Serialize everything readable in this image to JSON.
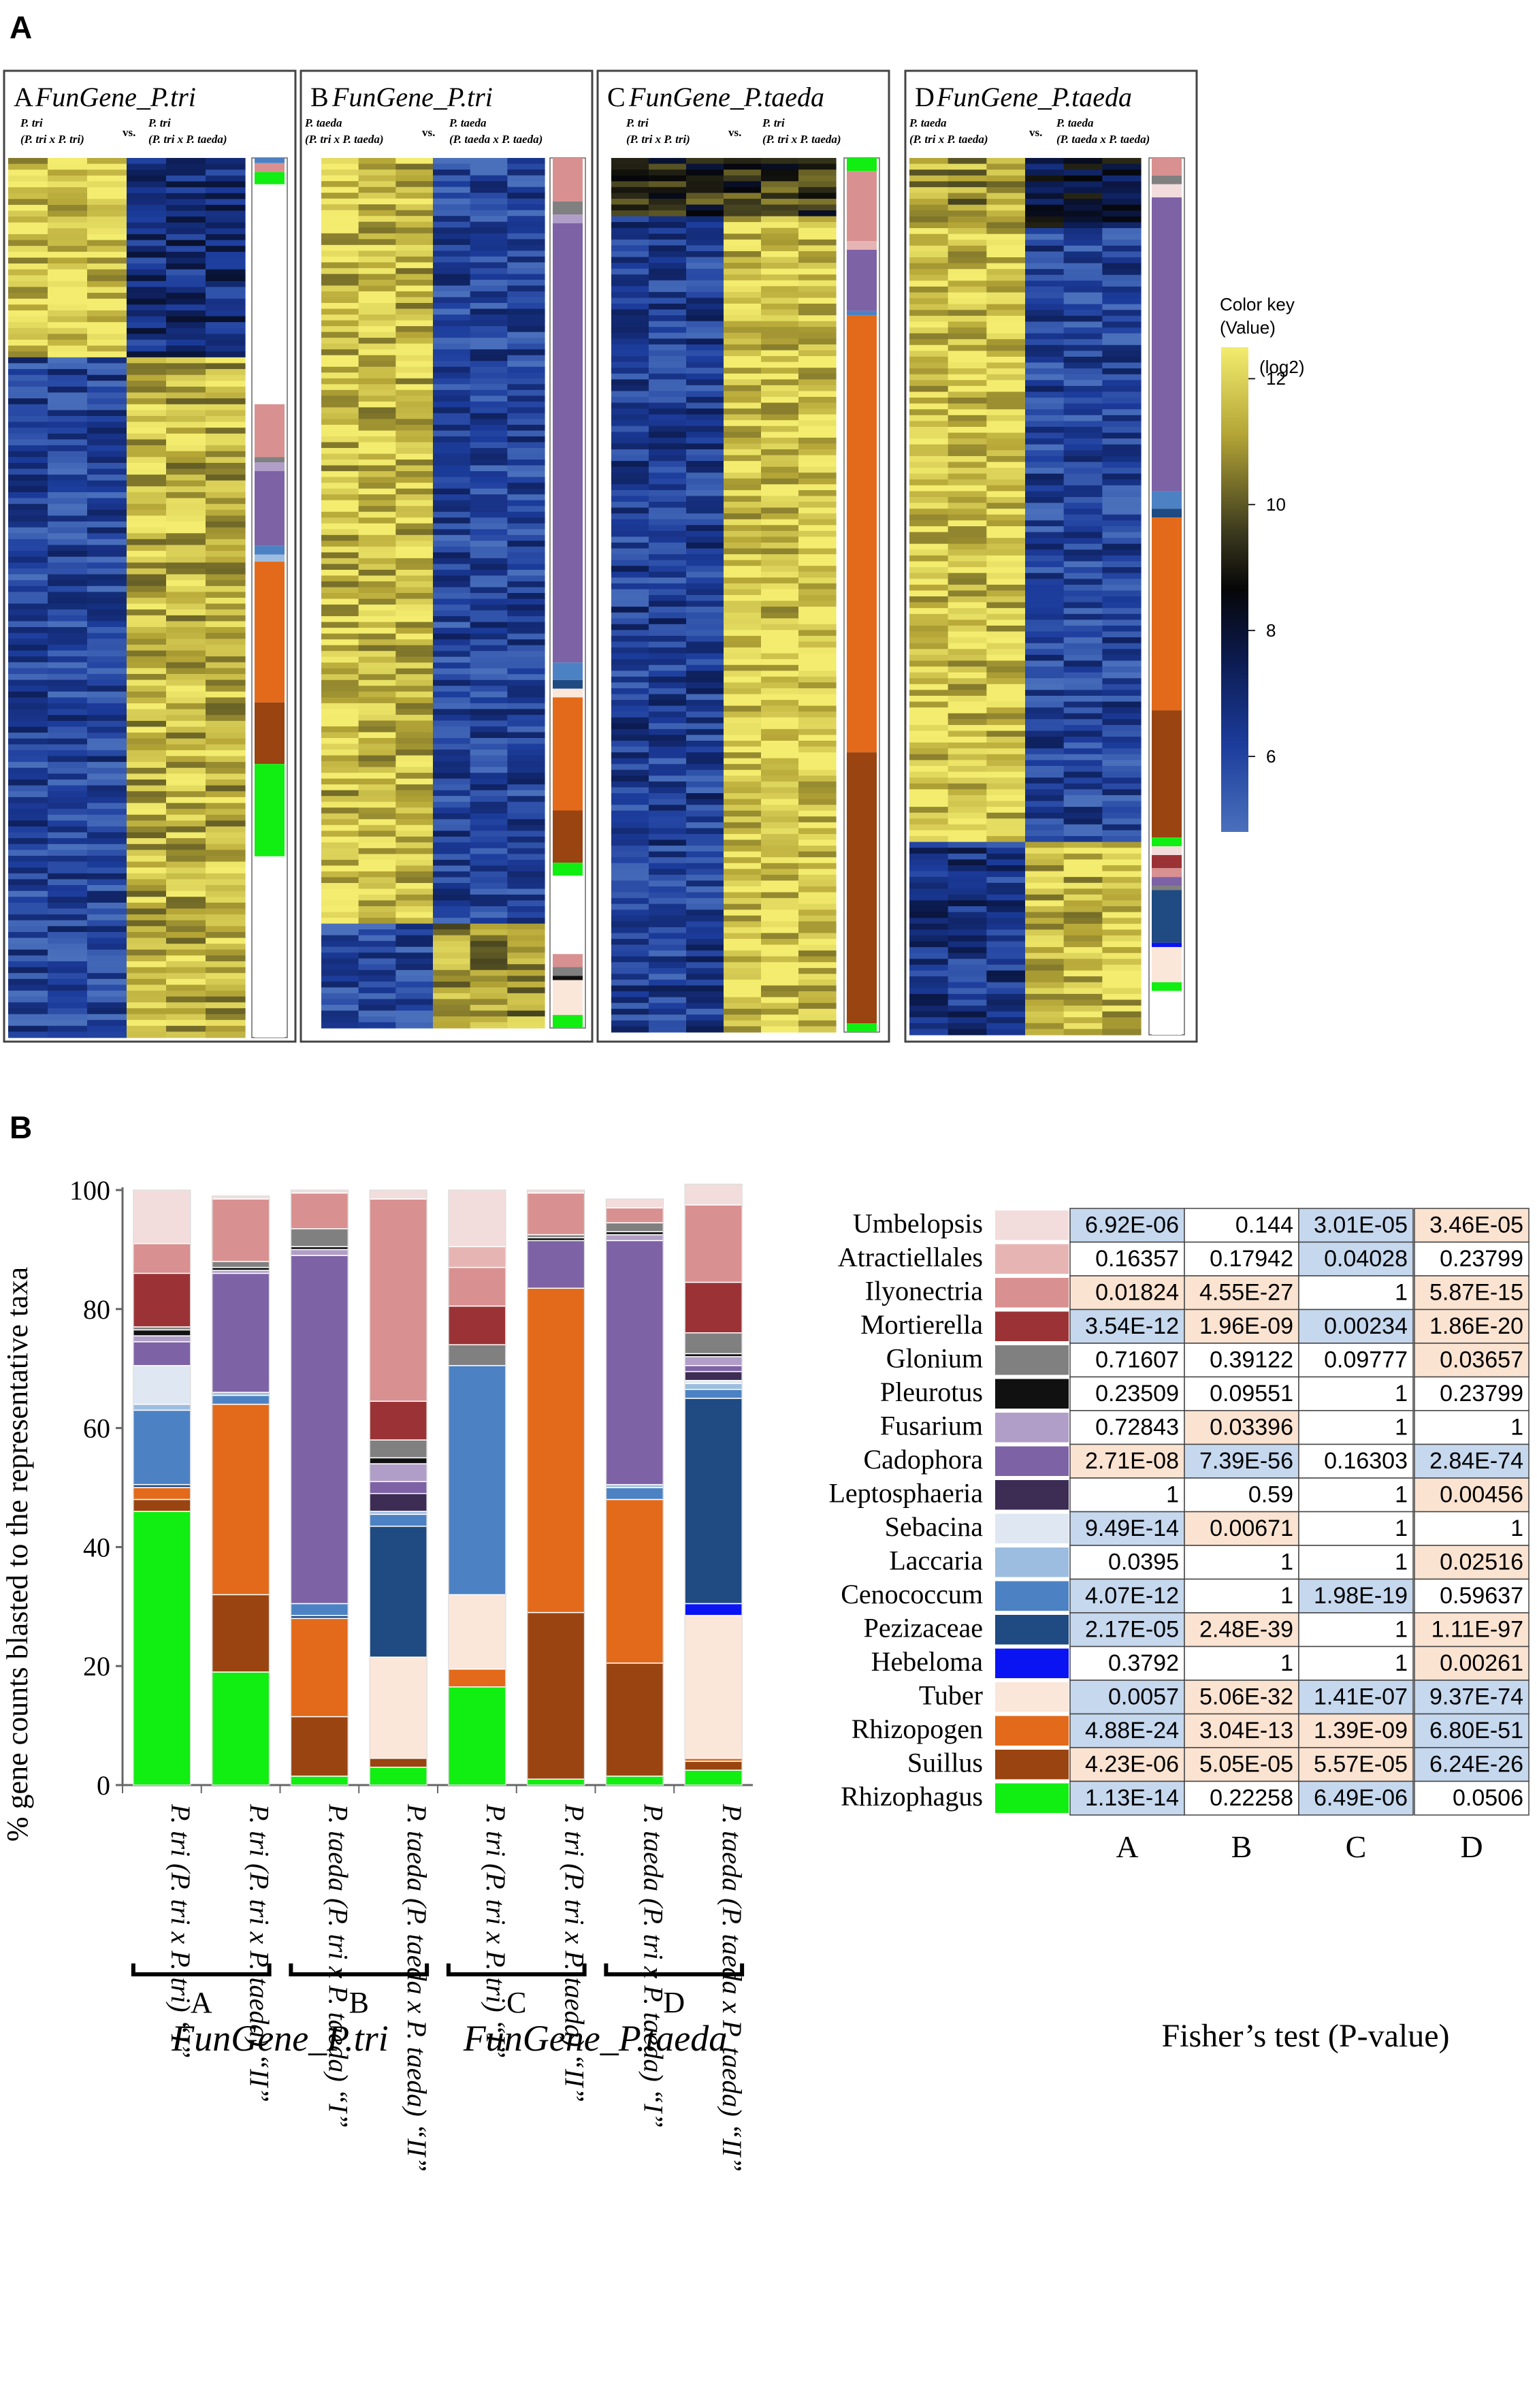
{
  "panel_a": {
    "label": "A",
    "color_key": {
      "title1": "Color key",
      "title2": "(Value)",
      "unit": "(log2)",
      "ticks": [
        "12",
        "10",
        "8",
        "6"
      ],
      "tick_values": [
        12,
        10,
        8,
        6
      ],
      "range": [
        4.8,
        12.5
      ]
    },
    "heatmaps": [
      {
        "letter": "A",
        "title": "FunGene_P.tri",
        "left_a": "P. tri",
        "left_b": "(P. tri x P. tri)",
        "vs": "vs.",
        "right_a": "P. tri",
        "right_b": "(P. tri x P. taeda)"
      },
      {
        "letter": "B",
        "title": "FunGene_P.tri",
        "left_a": "P. taeda",
        "left_b": "(P. tri x P. taeda)",
        "vs": "vs.",
        "right_a": "P. taeda",
        "right_b": "(P. taeda x P. taeda)"
      },
      {
        "letter": "C",
        "title": "FunGene_P.taeda",
        "left_a": "P. tri",
        "left_b": "(P. tri x P. tri)",
        "vs": "vs.",
        "right_a": "P. tri",
        "right_b": "(P. tri x P. taeda)"
      },
      {
        "letter": "D",
        "title": "FunGene_P.taeda",
        "left_a": "P. taeda",
        "left_b": "(P. tri x P. taeda)",
        "vs": "vs.",
        "right_a": "P. taeda",
        "right_b": "(P. taeda x P. taeda)"
      }
    ]
  },
  "panel_b": {
    "label": "B",
    "fisher_caption": "Fisher’s test (P-value)"
  },
  "chart_data": {
    "type": "bar",
    "stacked": true,
    "ylabel": "% gene counts blasted to the representative taxa",
    "ylim": [
      0,
      100
    ],
    "yticks": [
      0,
      20,
      40,
      60,
      80,
      100
    ],
    "categories": [
      "P. tri (P. tri x P. tri) “I”",
      "P. tri (P. tri x P. taeda) “II”",
      "P. taeda (P. tri x P. taeda) “I”",
      "P. taeda (P. taeda x P. taeda) “II”",
      "P. tri (P. tri x P. tri) “I”",
      "P. tri (P. tri x P. taeda) “II”",
      "P. taeda (P. tri x P. taeda) “I”",
      "P. taeda (P. taeda x P. taeda) “II”"
    ],
    "groups": [
      {
        "label": "A",
        "bars": [
          0,
          1
        ]
      },
      {
        "label": "B",
        "bars": [
          2,
          3
        ]
      },
      {
        "label": "C",
        "bars": [
          4,
          5
        ]
      },
      {
        "label": "D",
        "bars": [
          6,
          7
        ]
      }
    ],
    "group_captions": [
      {
        "text": "FunGene_P.tri",
        "groups": [
          0,
          1
        ]
      },
      {
        "text": "FunGene_P.taeda",
        "groups": [
          2,
          3
        ]
      }
    ],
    "legend_position": "right",
    "series": [
      {
        "name": "Rhizophagus",
        "color": "#11ee11",
        "values": [
          46,
          19,
          1.5,
          3,
          16.5,
          1,
          1.5,
          2.5
        ]
      },
      {
        "name": "Suillus",
        "color": "#994411",
        "values": [
          2,
          13,
          10,
          1.5,
          0,
          28,
          19,
          1.5
        ]
      },
      {
        "name": "Rhizopogen",
        "color": "#e26a1a",
        "values": [
          2,
          32,
          16.5,
          0,
          3,
          54.5,
          27.5,
          0.5
        ]
      },
      {
        "name": "Tuber",
        "color": "#fbe6da",
        "values": [
          0,
          0,
          0,
          17,
          12.5,
          0,
          0,
          24
        ]
      },
      {
        "name": "Hebeloma",
        "color": "#0a14f2",
        "values": [
          0,
          0,
          0,
          0,
          0,
          0,
          0,
          2
        ]
      },
      {
        "name": "Pezizaceae",
        "color": "#1f4a82",
        "values": [
          0.5,
          0,
          0.5,
          22,
          0,
          0,
          0,
          34.5
        ]
      },
      {
        "name": "Cenococcum",
        "color": "#4c82c4",
        "values": [
          12.5,
          1.5,
          2,
          2,
          38.5,
          0,
          2,
          1.5
        ]
      },
      {
        "name": "Laccaria",
        "color": "#9dbde0",
        "values": [
          1,
          0.5,
          0,
          0.5,
          0,
          0,
          0.5,
          1
        ]
      },
      {
        "name": "Sebacina",
        "color": "#dfe7f2",
        "values": [
          6.5,
          0,
          0,
          0,
          0,
          0,
          0,
          0.5
        ]
      },
      {
        "name": "Leptosphaeria",
        "color": "#3d2d55",
        "values": [
          0,
          0,
          0,
          3,
          0,
          0,
          0,
          1.5
        ]
      },
      {
        "name": "Cadophora",
        "color": "#7d62a6",
        "values": [
          4,
          20,
          58.5,
          2,
          0,
          8,
          41,
          1
        ]
      },
      {
        "name": "Fusarium",
        "color": "#b09ec8",
        "values": [
          1,
          0.5,
          1,
          3,
          0,
          0,
          1,
          1.5
        ]
      },
      {
        "name": "Pleurotus",
        "color": "#111111",
        "values": [
          1,
          0.5,
          0.5,
          1,
          0,
          0.5,
          0.5,
          0.5
        ]
      },
      {
        "name": "Glonium",
        "color": "#808080",
        "values": [
          0.5,
          1,
          3,
          3,
          3.5,
          0.5,
          1.5,
          3.5
        ]
      },
      {
        "name": "Mortierella",
        "color": "#9b3336",
        "values": [
          9,
          0,
          0,
          6.5,
          6.5,
          0,
          0,
          8.5
        ]
      },
      {
        "name": "Ilyonectria",
        "color": "#d99090",
        "values": [
          5,
          10.5,
          6,
          34,
          6.5,
          7,
          2.5,
          13
        ]
      },
      {
        "name": "Atractiellales",
        "color": "#e7b4b4",
        "values": [
          0,
          0,
          0,
          0,
          3.5,
          0,
          0,
          0
        ]
      },
      {
        "name": "Umbelopsis",
        "color": "#f3dcdc",
        "values": [
          9,
          0.5,
          0.5,
          1.5,
          9.5,
          0.5,
          1.5,
          3.5
        ]
      }
    ]
  },
  "fisher_table": {
    "columns": [
      "A",
      "B",
      "C",
      "D"
    ],
    "cell_colors": {
      "blue": "#c6d8ee",
      "peach": "#fbe3d1",
      "white": "#ffffff"
    },
    "rows": [
      {
        "taxon": "Umbelopsis",
        "color": "#f3dcdc",
        "values": [
          "6.92E-06",
          "0.144",
          "3.01E-05",
          "3.46E-05"
        ],
        "shade": [
          "blue",
          "white",
          "blue",
          "peach"
        ]
      },
      {
        "taxon": "Atractiellales",
        "color": "#e7b4b4",
        "values": [
          "0.16357",
          "0.17942",
          "0.04028",
          "0.23799"
        ],
        "shade": [
          "white",
          "white",
          "blue",
          "white"
        ]
      },
      {
        "taxon": "Ilyonectria",
        "color": "#d99090",
        "values": [
          "0.01824",
          "4.55E-27",
          "1",
          "5.87E-15"
        ],
        "shade": [
          "peach",
          "peach",
          "white",
          "peach"
        ]
      },
      {
        "taxon": "Mortierella",
        "color": "#9b3336",
        "values": [
          "3.54E-12",
          "1.96E-09",
          "0.00234",
          "1.86E-20"
        ],
        "shade": [
          "blue",
          "peach",
          "blue",
          "peach"
        ]
      },
      {
        "taxon": "Glonium",
        "color": "#808080",
        "values": [
          "0.71607",
          "0.39122",
          "0.09777",
          "0.03657"
        ],
        "shade": [
          "white",
          "white",
          "white",
          "peach"
        ]
      },
      {
        "taxon": "Pleurotus",
        "color": "#111111",
        "values": [
          "0.23509",
          "0.09551",
          "1",
          "0.23799"
        ],
        "shade": [
          "white",
          "white",
          "white",
          "white"
        ]
      },
      {
        "taxon": "Fusarium",
        "color": "#b09ec8",
        "values": [
          "0.72843",
          "0.03396",
          "1",
          "1"
        ],
        "shade": [
          "white",
          "peach",
          "white",
          "white"
        ]
      },
      {
        "taxon": "Cadophora",
        "color": "#7d62a6",
        "values": [
          "2.71E-08",
          "7.39E-56",
          "0.16303",
          "2.84E-74"
        ],
        "shade": [
          "peach",
          "blue",
          "white",
          "blue"
        ]
      },
      {
        "taxon": "Leptosphaeria",
        "color": "#3d2d55",
        "values": [
          "1",
          "0.59",
          "1",
          "0.00456"
        ],
        "shade": [
          "white",
          "white",
          "white",
          "peach"
        ]
      },
      {
        "taxon": "Sebacina",
        "color": "#dfe7f2",
        "values": [
          "9.49E-14",
          "0.00671",
          "1",
          "1"
        ],
        "shade": [
          "blue",
          "peach",
          "white",
          "white"
        ]
      },
      {
        "taxon": "Laccaria",
        "color": "#9dbde0",
        "values": [
          "0.0395",
          "1",
          "1",
          "0.02516"
        ],
        "shade": [
          "white",
          "white",
          "white",
          "peach"
        ]
      },
      {
        "taxon": "Cenococcum",
        "color": "#4c82c4",
        "values": [
          "4.07E-12",
          "1",
          "1.98E-19",
          "0.59637"
        ],
        "shade": [
          "blue",
          "white",
          "blue",
          "white"
        ]
      },
      {
        "taxon": "Pezizaceae",
        "color": "#1f4a82",
        "values": [
          "2.17E-05",
          "2.48E-39",
          "1",
          "1.11E-97"
        ],
        "shade": [
          "blue",
          "peach",
          "white",
          "peach"
        ]
      },
      {
        "taxon": "Hebeloma",
        "color": "#0a14f2",
        "values": [
          "0.3792",
          "1",
          "1",
          "0.00261"
        ],
        "shade": [
          "white",
          "white",
          "white",
          "peach"
        ]
      },
      {
        "taxon": "Tuber",
        "color": "#fbe6da",
        "values": [
          "0.0057",
          "5.06E-32",
          "1.41E-07",
          "9.37E-74"
        ],
        "shade": [
          "blue",
          "peach",
          "blue",
          "blue"
        ]
      },
      {
        "taxon": "Rhizopogen",
        "color": "#e26a1a",
        "values": [
          "4.88E-24",
          "3.04E-13",
          "1.39E-09",
          "6.80E-51"
        ],
        "shade": [
          "blue",
          "peach",
          "peach",
          "blue"
        ]
      },
      {
        "taxon": "Suillus",
        "color": "#994411",
        "values": [
          "4.23E-06",
          "5.05E-05",
          "5.57E-05",
          "6.24E-26"
        ],
        "shade": [
          "peach",
          "peach",
          "peach",
          "blue"
        ]
      },
      {
        "taxon": "Rhizophagus",
        "color": "#11ee11",
        "values": [
          "1.13E-14",
          "0.22258",
          "6.49E-06",
          "0.0506"
        ],
        "shade": [
          "blue",
          "white",
          "blue",
          "white"
        ]
      }
    ]
  },
  "heatmap_data": {
    "A": {
      "blocks": [
        {
          "frac": 0.23,
          "left": 11.8,
          "right": 6.8
        },
        {
          "frac": 0.77,
          "left": 6.0,
          "right": 11.4
        }
      ],
      "strip": [
        {
          "name": "Cenococcum",
          "frac": 0.006
        },
        {
          "name": "Ilyonectria",
          "frac": 0.01
        },
        {
          "name": "Rhizophagus",
          "frac": 0.014
        },
        {
          "name": "blank",
          "frac": 0.25
        },
        {
          "name": "Ilyonectria",
          "frac": 0.06
        },
        {
          "name": "Glonium",
          "frac": 0.006
        },
        {
          "name": "Fusarium",
          "frac": 0.01
        },
        {
          "name": "Cadophora",
          "frac": 0.085
        },
        {
          "name": "Cenococcum",
          "frac": 0.01
        },
        {
          "name": "Laccaria",
          "frac": 0.008
        },
        {
          "name": "Rhizopogen",
          "frac": 0.16
        },
        {
          "name": "Suillus",
          "frac": 0.07
        },
        {
          "name": "Rhizophagus",
          "frac": 0.105
        },
        {
          "name": "blank",
          "frac": 0.206
        }
      ]
    },
    "B": {
      "blocks": [
        {
          "frac": 0.88,
          "left": 11.6,
          "right": 6.0
        },
        {
          "frac": 0.12,
          "left": 5.8,
          "right": 11.0
        }
      ],
      "strip": [
        {
          "name": "Ilyonectria",
          "frac": 0.05
        },
        {
          "name": "Glonium",
          "frac": 0.015
        },
        {
          "name": "Fusarium",
          "frac": 0.01
        },
        {
          "name": "Cadophora",
          "frac": 0.505
        },
        {
          "name": "Cenococcum",
          "frac": 0.02
        },
        {
          "name": "Pezizaceae",
          "frac": 0.01
        },
        {
          "name": "Tuber",
          "frac": 0.01
        },
        {
          "name": "Rhizopogen",
          "frac": 0.13
        },
        {
          "name": "Suillus",
          "frac": 0.06
        },
        {
          "name": "Rhizophagus",
          "frac": 0.015
        },
        {
          "name": "blank",
          "frac": 0.09
        },
        {
          "name": "Ilyonectria",
          "frac": 0.015
        },
        {
          "name": "Glonium",
          "frac": 0.01
        },
        {
          "name": "Pleurotus",
          "frac": 0.005
        },
        {
          "name": "Tuber",
          "frac": 0.04
        },
        {
          "name": "Rhizophagus",
          "frac": 0.015
        }
      ]
    },
    "C": {
      "blocks": [
        {
          "frac": 0.07,
          "left": 9.2,
          "right": 9.4
        },
        {
          "frac": 0.93,
          "left": 6.2,
          "right": 11.8
        }
      ],
      "strip": [
        {
          "name": "Rhizophagus",
          "frac": 0.015
        },
        {
          "name": "Ilyonectria",
          "frac": 0.08
        },
        {
          "name": "Atractiellales",
          "frac": 0.01
        },
        {
          "name": "Cadophora",
          "frac": 0.07
        },
        {
          "name": "Cenococcum",
          "frac": 0.005
        },
        {
          "name": "Rhizopogen",
          "frac": 0.5
        },
        {
          "name": "Suillus",
          "frac": 0.31
        },
        {
          "name": "Rhizophagus",
          "frac": 0.01
        }
      ]
    },
    "D": {
      "blocks": [
        {
          "frac": 0.08,
          "left": 11.0,
          "right": 8.0
        },
        {
          "frac": 0.7,
          "left": 11.8,
          "right": 6.0
        },
        {
          "frac": 0.22,
          "left": 6.5,
          "right": 11.6
        }
      ],
      "strip": [
        {
          "name": "Ilyonectria",
          "frac": 0.02
        },
        {
          "name": "Glonium",
          "frac": 0.01
        },
        {
          "name": "Umbelopsis",
          "frac": 0.015
        },
        {
          "name": "Cadophora",
          "frac": 0.335
        },
        {
          "name": "Cenococcum",
          "frac": 0.02
        },
        {
          "name": "Pezizaceae",
          "frac": 0.01
        },
        {
          "name": "Rhizopogen",
          "frac": 0.22
        },
        {
          "name": "Suillus",
          "frac": 0.145
        },
        {
          "name": "Rhizophagus",
          "frac": 0.01
        },
        {
          "name": "Umbelopsis",
          "frac": 0.01
        },
        {
          "name": "Mortierella",
          "frac": 0.015
        },
        {
          "name": "Ilyonectria",
          "frac": 0.01
        },
        {
          "name": "Cadophora",
          "frac": 0.01
        },
        {
          "name": "Glonium",
          "frac": 0.005
        },
        {
          "name": "Pezizaceae",
          "frac": 0.06
        },
        {
          "name": "Hebeloma",
          "frac": 0.005
        },
        {
          "name": "Tuber",
          "frac": 0.04
        },
        {
          "name": "Rhizophagus",
          "frac": 0.01
        },
        {
          "name": "blank",
          "frac": 0.05
        }
      ]
    }
  }
}
